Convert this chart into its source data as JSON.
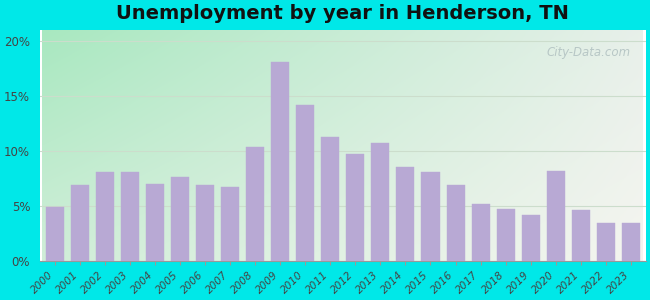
{
  "title": "Unemployment by year in Henderson, TN",
  "years": [
    2000,
    2001,
    2002,
    2003,
    2004,
    2005,
    2006,
    2007,
    2008,
    2009,
    2010,
    2011,
    2012,
    2013,
    2014,
    2015,
    2016,
    2017,
    2018,
    2019,
    2020,
    2021,
    2022,
    2023
  ],
  "values": [
    4.9,
    6.9,
    8.1,
    8.1,
    7.0,
    7.6,
    6.9,
    6.7,
    10.4,
    18.1,
    14.2,
    11.3,
    9.7,
    10.7,
    8.6,
    8.1,
    6.9,
    5.2,
    4.7,
    4.2,
    8.2,
    4.6,
    3.5,
    3.5
  ],
  "bar_color": "#b8a9d4",
  "background_color_outer": "#00e8e8",
  "title_fontsize": 14,
  "tick_fontsize": 7.5,
  "ytick_labels": [
    "0%",
    "5%",
    "10%",
    "15%",
    "20%"
  ],
  "ytick_values": [
    0,
    5,
    10,
    15,
    20
  ],
  "ylim": [
    0,
    21
  ],
  "grid_color": "#ccddcc",
  "watermark": "City-Data.com",
  "bg_top_left": "#a8e8c0",
  "bg_top_right": "#e8f0ea",
  "bg_bottom_left": "#d0eed8",
  "bg_bottom_right": "#f5f5f0"
}
